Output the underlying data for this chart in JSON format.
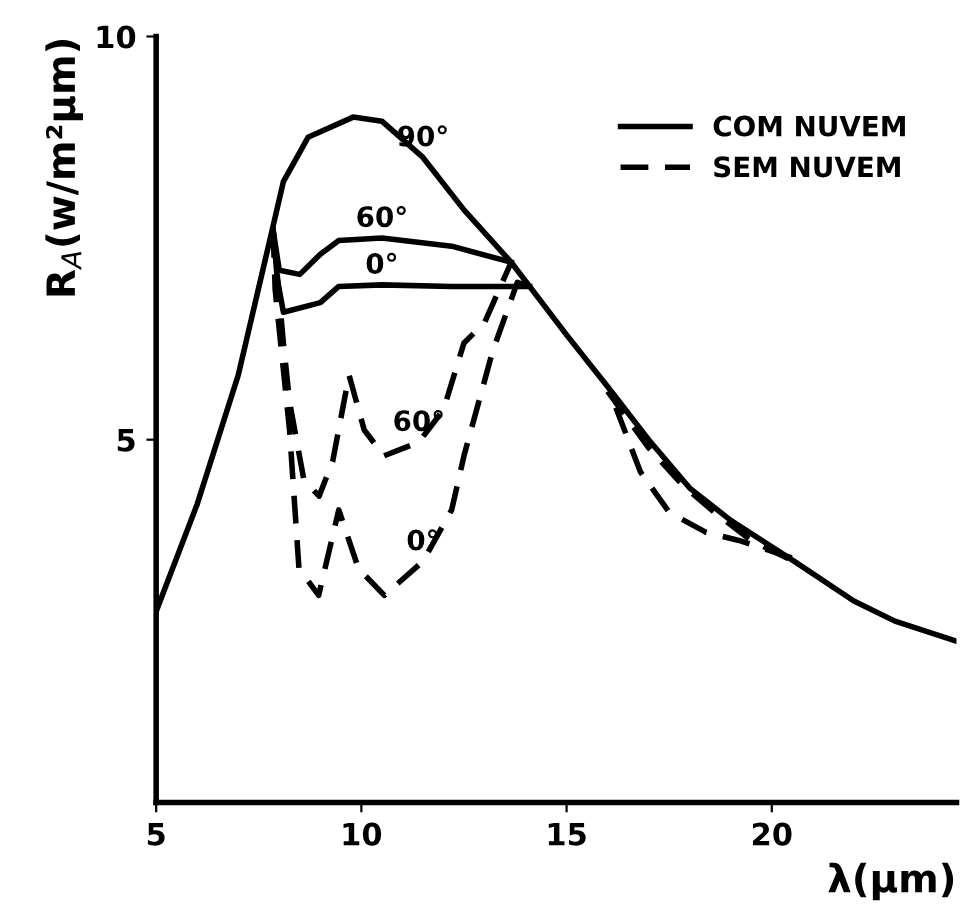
{
  "chart_data": {
    "type": "line",
    "xlabel": "λ(μm)",
    "ylabel": "R$_{A}$(w/m²μm)",
    "xlim": [
      5,
      24.5
    ],
    "ylim": [
      0.5,
      10
    ],
    "xticks": [
      5,
      10,
      15,
      20
    ],
    "yticks": [
      5,
      10
    ],
    "grid": false,
    "legend": "top right",
    "marker": "none",
    "series": [
      {
        "color": "#000000",
        "line_style": "solid",
        "x": [
          5,
          6,
          7,
          7.85,
          8.1,
          8.7,
          9.8,
          10.5,
          11.5,
          12.5,
          13.65,
          15,
          16.06,
          17,
          18,
          19,
          20.55,
          22,
          23,
          24.5
        ],
        "values": [
          2.87,
          4.2,
          5.8,
          7.65,
          8.2,
          8.75,
          9.0,
          8.95,
          8.5,
          7.85,
          7.2,
          6.3,
          5.62,
          5.0,
          4.4,
          4.0,
          3.49,
          3.0,
          2.75,
          2.5
        ]
      },
      {
        "color": "#000000",
        "line_style": "solid",
        "x": [
          7.85,
          8.0,
          8.5,
          9.0,
          9.45,
          10.5,
          12.2,
          13.65
        ],
        "values": [
          7.6,
          7.1,
          7.05,
          7.3,
          7.47,
          7.5,
          7.4,
          7.2
        ]
      },
      {
        "name": "COM NUVEM",
        "color": "#000000",
        "line_style": "solid",
        "x": [
          7.85,
          7.95,
          8.1,
          9.0,
          9.45,
          10.5,
          12.2,
          14.1
        ],
        "values": [
          7.6,
          7.0,
          6.58,
          6.7,
          6.9,
          6.92,
          6.9,
          6.9
        ]
      },
      {
        "color": "#000000",
        "line_style": "dashed",
        "x": [
          7.85,
          8.1,
          8.25,
          8.6,
          8.97,
          9.3,
          9.7,
          10.07,
          10.55,
          11.4,
          12.0,
          12.5,
          13.0,
          13.65,
          15,
          16.0,
          17.0,
          17.8,
          18.6,
          19.5,
          20.5
        ],
        "values": [
          7.6,
          6.2,
          5.47,
          4.5,
          4.3,
          4.73,
          5.8,
          5.12,
          4.8,
          4.97,
          5.37,
          6.2,
          6.45,
          7.2,
          null,
          5.6,
          4.9,
          4.45,
          4.1,
          3.75,
          3.5
        ]
      },
      {
        "name": "SEM NUVEM",
        "color": "#000000",
        "line_style": "dashed",
        "x": [
          7.85,
          7.9,
          8.25,
          8.48,
          8.96,
          9.45,
          9.93,
          10.56,
          11.5,
          12.2,
          12.5,
          13.2,
          13.8,
          14.1,
          15,
          16.2,
          16.8,
          17.5,
          18.4,
          19.2,
          20.7
        ],
        "values": [
          7.6,
          6.86,
          5.12,
          3.4,
          3.07,
          4.13,
          3.4,
          3.07,
          3.49,
          4.13,
          4.8,
          6.1,
          6.95,
          6.9,
          null,
          5.4,
          4.6,
          4.1,
          3.85,
          3.75,
          3.5
        ]
      }
    ],
    "annotations": [
      {
        "text": "90°",
        "x": 11.5,
        "y": 8.5
      },
      {
        "text": "60°",
        "x": 10.5,
        "y": 7.5
      },
      {
        "text": "0°",
        "x": 10.5,
        "y": 6.92
      },
      {
        "text": "60°",
        "x": 11.4,
        "y": 4.97
      },
      {
        "text": "0°",
        "x": 11.5,
        "y": 3.49
      }
    ]
  }
}
